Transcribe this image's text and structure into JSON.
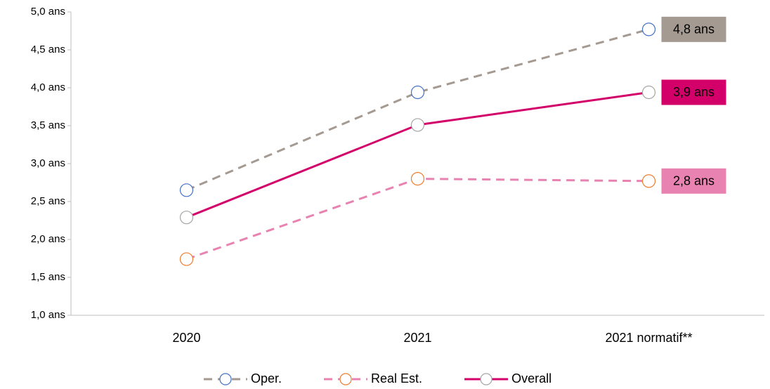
{
  "chart_data": {
    "type": "line",
    "categories": [
      "2020",
      "2021",
      "2021 normatif**"
    ],
    "series": [
      {
        "name": "Oper.",
        "color": "#a49a91",
        "marker_color": "#4472c4",
        "dashed": true,
        "values": [
          2.65,
          3.94,
          4.77
        ],
        "value_labels": [
          null,
          null,
          "4,8 ans"
        ]
      },
      {
        "name": "Real Est.",
        "color": "#e883b1",
        "marker_color": "#ed7d31",
        "dashed": true,
        "values": [
          1.74,
          2.8,
          2.77
        ],
        "value_labels": [
          null,
          null,
          "2,8 ans"
        ]
      },
      {
        "name": "Overall",
        "color": "#d4006a",
        "marker_color": "#a5a5a5",
        "dashed": false,
        "values": [
          2.29,
          3.51,
          3.94
        ],
        "value_labels": [
          null,
          null,
          "3,9 ans"
        ]
      }
    ],
    "ylim": [
      1.0,
      5.0
    ],
    "yticks": [
      {
        "value": 1.0,
        "label": "1,0 ans"
      },
      {
        "value": 1.5,
        "label": "1,5 ans"
      },
      {
        "value": 2.0,
        "label": "2,0 ans"
      },
      {
        "value": 2.5,
        "label": "2,5 ans"
      },
      {
        "value": 3.0,
        "label": "3,0 ans"
      },
      {
        "value": 3.5,
        "label": "3,5 ans"
      },
      {
        "value": 4.0,
        "label": "4,0 ans"
      },
      {
        "value": 4.5,
        "label": "4,5 ans"
      },
      {
        "value": 5.0,
        "label": "5,0 ans"
      }
    ],
    "grid": false,
    "legend": "bottom"
  }
}
